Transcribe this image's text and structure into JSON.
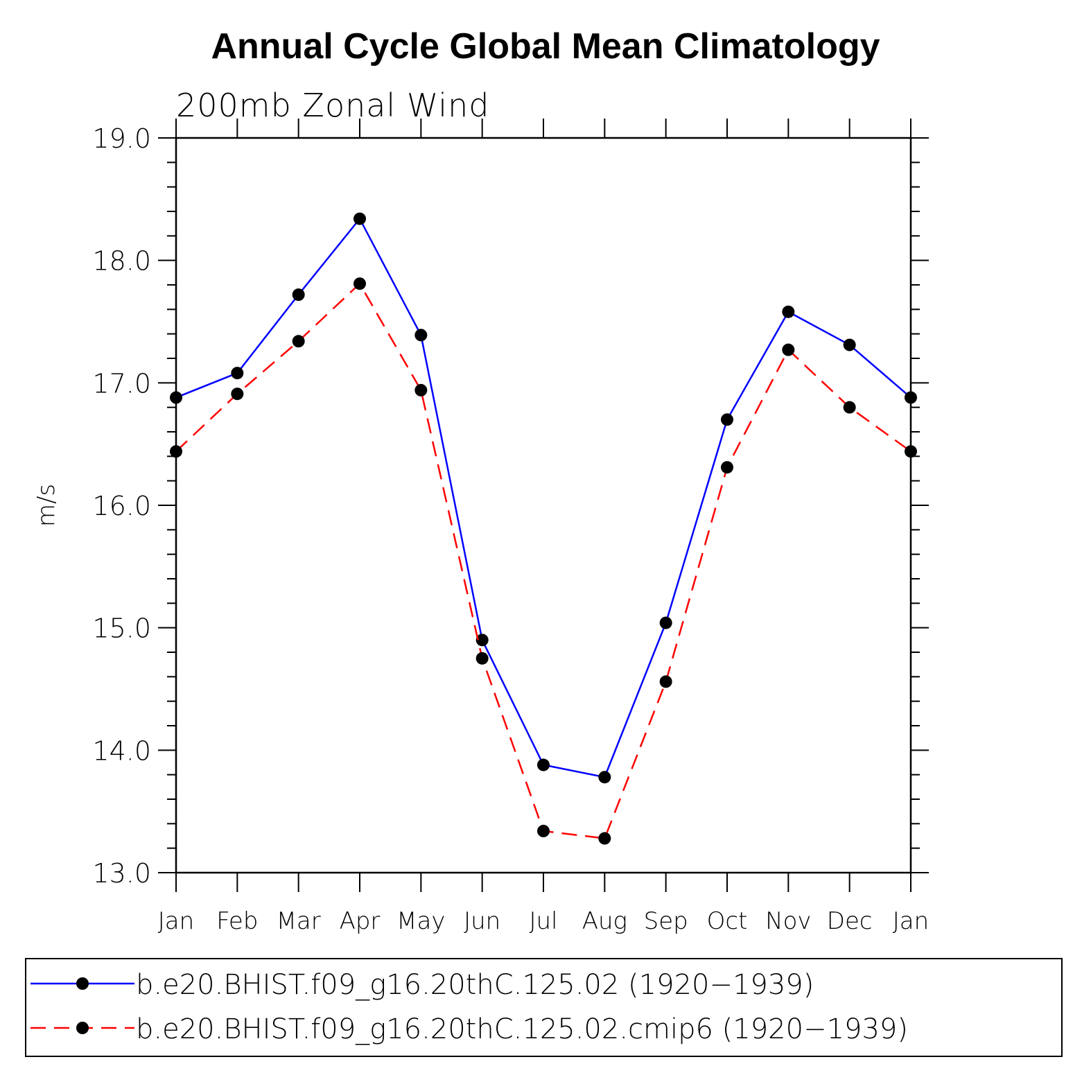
{
  "chart_data": {
    "type": "line",
    "title": "Annual Cycle Global Mean Climatology",
    "subtitle": "200mb Zonal Wind",
    "xlabel": "",
    "ylabel": "m/s",
    "ylim": [
      13.0,
      19.0
    ],
    "yticks": [
      "13.0",
      "14.0",
      "15.0",
      "16.0",
      "17.0",
      "18.0",
      "19.0"
    ],
    "categories": [
      "Jan",
      "Feb",
      "Mar",
      "Apr",
      "May",
      "Jun",
      "Jul",
      "Aug",
      "Sep",
      "Oct",
      "Nov",
      "Dec",
      "Jan"
    ],
    "grid": false,
    "legend_position": "bottom",
    "series": [
      {
        "name": "b.e20.BHIST.f09_g16.20thC.125.02 (1920−1939)",
        "color": "#0000ff",
        "dash": "solid",
        "marker": "filled-circle",
        "values": [
          16.88,
          17.08,
          17.72,
          18.34,
          17.39,
          14.9,
          13.88,
          13.78,
          15.04,
          16.7,
          17.58,
          17.31,
          16.88
        ]
      },
      {
        "name": "b.e20.BHIST.f09_g16.20thC.125.02.cmip6 (1920−1939)",
        "color": "#ff0000",
        "dash": "dashed",
        "marker": "filled-circle",
        "values": [
          16.44,
          16.91,
          17.34,
          17.81,
          16.94,
          14.75,
          13.34,
          13.28,
          14.56,
          16.31,
          17.27,
          16.8,
          16.44
        ]
      }
    ]
  }
}
